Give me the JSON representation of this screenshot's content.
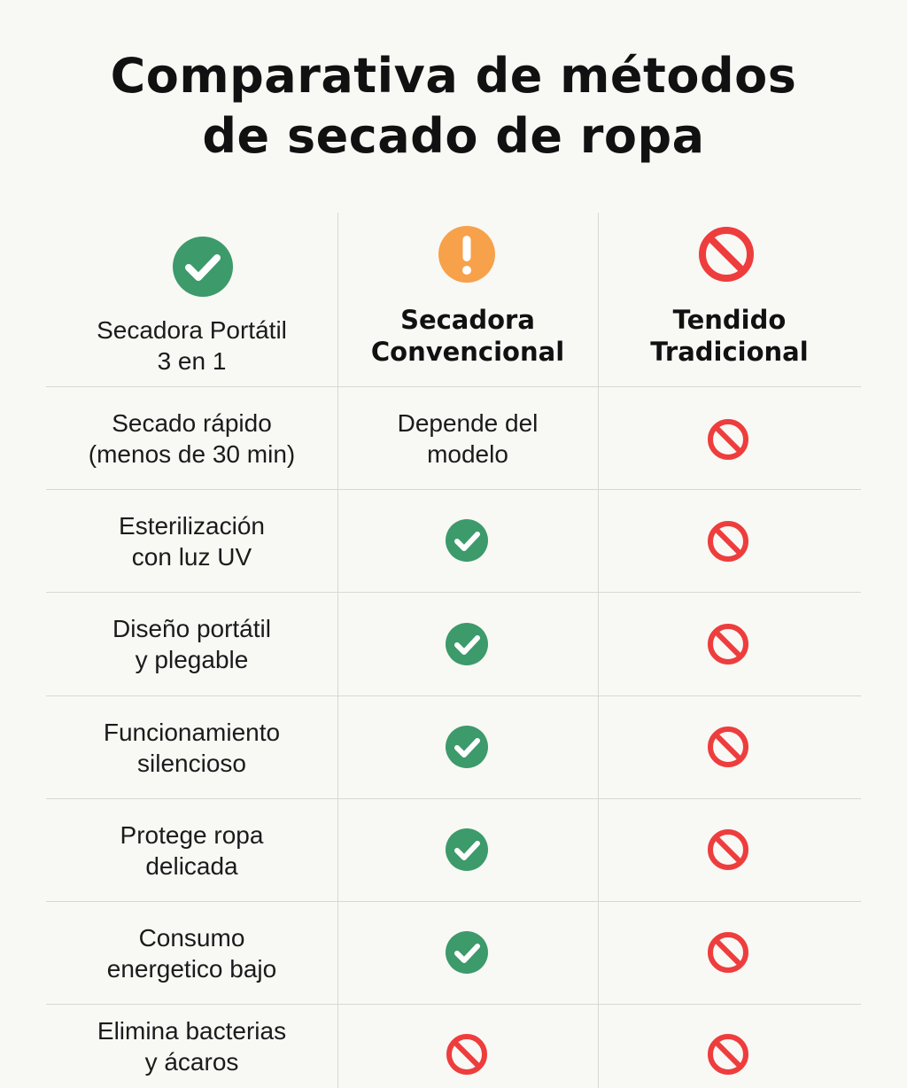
{
  "title": {
    "line1": "Comparativa de métodos",
    "line2": "de secado de ropa"
  },
  "columns": [
    {
      "line1": "Secadora Portátil",
      "line2": "3 en 1",
      "icon": "check-icon"
    },
    {
      "line1": "Secadora",
      "line2": "Convencional",
      "icon": "warning-icon"
    },
    {
      "line1": "Tendido",
      "line2": "Tradicional",
      "icon": "prohibited-icon"
    }
  ],
  "rows": [
    {
      "line1": "Secado rápido",
      "line2": "(menos de 30 min)",
      "conventional": {
        "type": "text",
        "line1": "Depende del",
        "line2": "modelo"
      },
      "traditional": "prohibited-icon"
    },
    {
      "line1": "Esterilización",
      "line2": "con luz UV",
      "conventional": {
        "type": "icon",
        "icon": "check-icon"
      },
      "traditional": "prohibited-icon"
    },
    {
      "line1": "Diseño portátil",
      "line2": "y plegable",
      "conventional": {
        "type": "icon",
        "icon": "check-icon"
      },
      "traditional": "prohibited-icon"
    },
    {
      "line1": "Funcionamiento",
      "line2": "silencioso",
      "conventional": {
        "type": "icon",
        "icon": "check-icon"
      },
      "traditional": "prohibited-icon"
    },
    {
      "line1": "Protege ropa",
      "line2": "delicada",
      "conventional": {
        "type": "icon",
        "icon": "check-icon"
      },
      "traditional": "prohibited-icon"
    },
    {
      "line1": "Consumo",
      "line2": "energetico bajo",
      "conventional": {
        "type": "icon",
        "icon": "check-icon"
      },
      "traditional": "prohibited-icon"
    },
    {
      "line1": "Elimina bacterias",
      "line2": "y ácaros",
      "conventional": {
        "type": "icon",
        "icon": "prohibited-icon"
      },
      "traditional": "prohibited-icon"
    }
  ],
  "colors": {
    "check": "#3d9a6a",
    "warning": "#f7a14a",
    "prohibited": "#ee3d3d",
    "background": "#f8f8f5",
    "grid": "#d8d8d2"
  }
}
